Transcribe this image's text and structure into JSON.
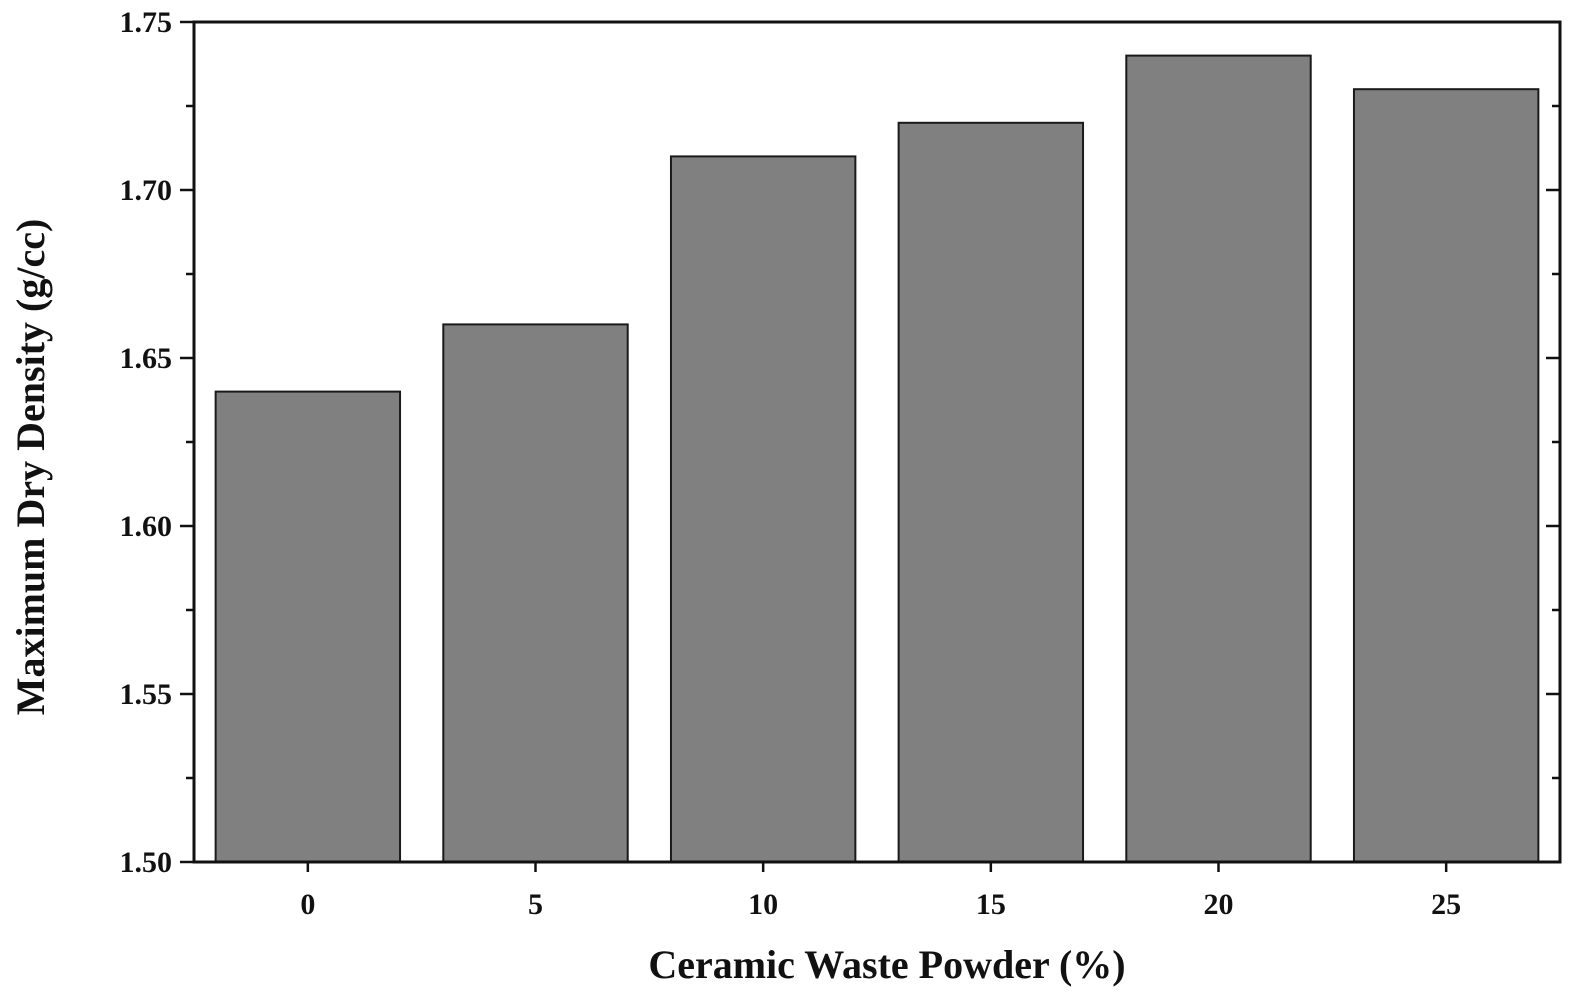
{
  "chart_data": {
    "type": "bar",
    "title": "",
    "xlabel": "Ceramic Waste Powder (%)",
    "ylabel": "Maximum Dry Density (g/cc)",
    "categories": [
      "0",
      "5",
      "10",
      "15",
      "20",
      "25"
    ],
    "values": [
      1.64,
      1.66,
      1.71,
      1.72,
      1.74,
      1.73
    ],
    "ylim": [
      1.5,
      1.75
    ],
    "yticks": [
      "1.50",
      "1.55",
      "1.60",
      "1.65",
      "1.70",
      "1.75"
    ],
    "grid": false,
    "legend": "none",
    "colors": {
      "bar_fill": "#808080",
      "bar_edge": "#1a1a1a",
      "axis": "#111111"
    }
  }
}
